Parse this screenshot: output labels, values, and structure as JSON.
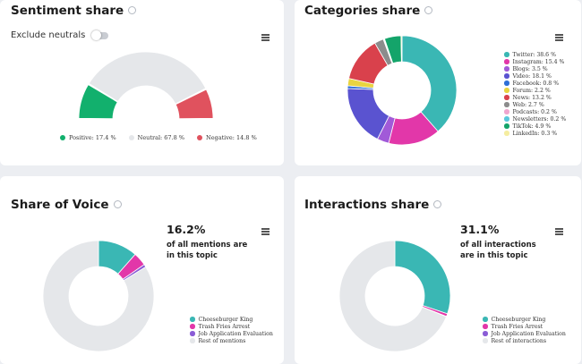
{
  "sentiment": {
    "title": "Sentiment share",
    "toggle_label": "Exclude neutrals",
    "toggle_on": false,
    "legend": [
      {
        "label": "Positive: 17.4 %",
        "color": "#12b06d"
      },
      {
        "label": "Neutral: 67.8 %",
        "color": "#e5e7ea"
      },
      {
        "label": "Negative: 14.8 %",
        "color": "#e0525e"
      }
    ]
  },
  "categories": {
    "title": "Categories share",
    "legend": [
      {
        "label": "Twitter: 38.6 %",
        "color": "#3ab7b4"
      },
      {
        "label": "Instagram: 15.4 %",
        "color": "#e237a9"
      },
      {
        "label": "Blogs: 3.5 %",
        "color": "#a15ad8"
      },
      {
        "label": "Video: 18.1 %",
        "color": "#5a53d0"
      },
      {
        "label": "Facebook: 0.8 %",
        "color": "#2f6fd6"
      },
      {
        "label": "Forum: 2.2 %",
        "color": "#e9d440"
      },
      {
        "label": "News: 13.2 %",
        "color": "#d9414c"
      },
      {
        "label": "Web: 2.7 %",
        "color": "#8c8c8c"
      },
      {
        "label": "Podcasts: 0.2 %",
        "color": "#f0a6cf"
      },
      {
        "label": "Newsletters: 0.2 %",
        "color": "#5ac8dc"
      },
      {
        "label": "TikTok: 4.9 %",
        "color": "#14a46a"
      },
      {
        "label": "LinkedIn: 0.3 %",
        "color": "#f5eda0"
      }
    ]
  },
  "voice": {
    "title": "Share of Voice",
    "percent": "16.2%",
    "subtitle": "of all mentions are in this topic",
    "legend": [
      {
        "label": "Cheeseburger King",
        "color": "#3ab7b4"
      },
      {
        "label": "Trash Fries Arrest",
        "color": "#e237a9"
      },
      {
        "label": "Job Application Evaluation",
        "color": "#8a5cd6"
      },
      {
        "label": "Rest of mentions",
        "color": "#e5e7ea"
      }
    ]
  },
  "interactions": {
    "title": "Interactions share",
    "percent": "31.1%",
    "subtitle": "of all interactions are in this topic",
    "legend": [
      {
        "label": "Cheeseburger King",
        "color": "#3ab7b4"
      },
      {
        "label": "Trash Fries Arrest",
        "color": "#e237a9"
      },
      {
        "label": "Job Application Evaluation",
        "color": "#8a5cd6"
      },
      {
        "label": "Rest of interactions",
        "color": "#e5e7ea"
      }
    ]
  },
  "chart_data": [
    {
      "type": "pie",
      "variant": "semi-donut",
      "categories": [
        "Positive",
        "Neutral",
        "Negative"
      ],
      "values": [
        17.4,
        67.8,
        14.8
      ],
      "colors": [
        "#12b06d",
        "#e5e7ea",
        "#e0525e"
      ]
    },
    {
      "type": "pie",
      "variant": "donut",
      "categories": [
        "Twitter",
        "Instagram",
        "Blogs",
        "Video",
        "Facebook",
        "Forum",
        "News",
        "Web",
        "Podcasts",
        "Newsletters",
        "TikTok",
        "LinkedIn"
      ],
      "values": [
        38.6,
        15.4,
        3.5,
        18.1,
        0.8,
        2.2,
        13.2,
        2.7,
        0.2,
        0.2,
        4.9,
        0.3
      ],
      "colors": [
        "#3ab7b4",
        "#e237a9",
        "#a15ad8",
        "#5a53d0",
        "#2f6fd6",
        "#e9d440",
        "#d9414c",
        "#8c8c8c",
        "#f0a6cf",
        "#5ac8dc",
        "#14a46a",
        "#f5eda0"
      ]
    },
    {
      "type": "pie",
      "variant": "donut",
      "categories": [
        "Cheeseburger King",
        "Trash Fries Arrest",
        "Job Application Evaluation",
        "Rest of mentions"
      ],
      "values": [
        11.5,
        3.9,
        0.8,
        83.8
      ],
      "colors": [
        "#3ab7b4",
        "#e237a9",
        "#8a5cd6",
        "#e5e7ea"
      ]
    },
    {
      "type": "pie",
      "variant": "donut",
      "categories": [
        "Cheeseburger King",
        "Trash Fries Arrest",
        "Job Application Evaluation",
        "Rest of interactions"
      ],
      "values": [
        30.2,
        0.8,
        0.1,
        68.9
      ],
      "colors": [
        "#3ab7b4",
        "#e237a9",
        "#8a5cd6",
        "#e5e7ea"
      ]
    }
  ]
}
